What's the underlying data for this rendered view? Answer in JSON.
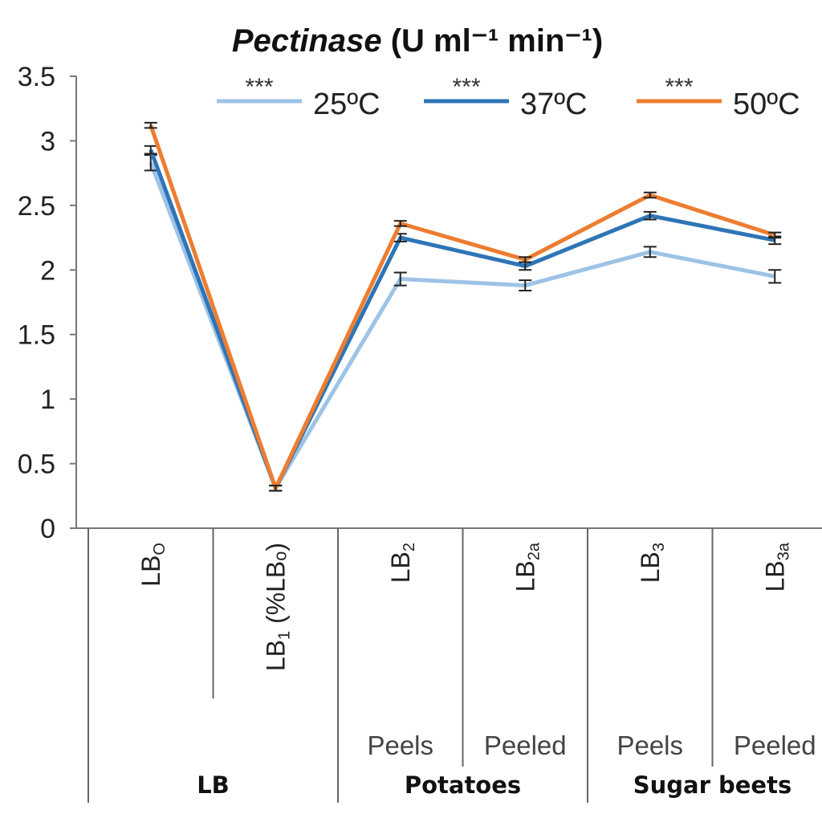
{
  "chart_data": {
    "type": "line",
    "title_italic": "Pectinase",
    "title_rest": " (U ml⁻¹ min⁻¹)",
    "ylim": [
      0,
      3.5
    ],
    "yticks": [
      "0",
      "0.5",
      "1",
      "1.5",
      "2",
      "2.5",
      "3",
      "3.5"
    ],
    "categories": [
      {
        "base": "LB",
        "sub": "O",
        "tail": ""
      },
      {
        "base": "LB",
        "sub": "1",
        "tail": " (%LBₒ)"
      },
      {
        "base": "LB",
        "sub": "2",
        "tail": ""
      },
      {
        "base": "LB",
        "sub": "2a",
        "tail": ""
      },
      {
        "base": "LB",
        "sub": "3",
        "tail": ""
      },
      {
        "base": "LB",
        "sub": "3a",
        "tail": ""
      }
    ],
    "sub_labels": [
      "",
      "",
      "Peels",
      "Peeled",
      "Peels",
      "Peeled"
    ],
    "groups": [
      {
        "label": "LB",
        "from": 0,
        "to": 1
      },
      {
        "label": "Potatoes",
        "from": 2,
        "to": 3
      },
      {
        "label": "Sugar beets",
        "from": 4,
        "to": 5
      }
    ],
    "series": [
      {
        "name": "25ºC",
        "stars": "***",
        "color": "#9DC3E6",
        "values": [
          2.83,
          0.31,
          1.93,
          1.88,
          2.14,
          1.95
        ],
        "err": [
          0.06,
          0.02,
          0.05,
          0.04,
          0.04,
          0.05
        ]
      },
      {
        "name": "37ºC",
        "stars": "***",
        "color": "#2E75B6",
        "values": [
          2.93,
          0.31,
          2.25,
          2.03,
          2.42,
          2.23
        ],
        "err": [
          0.03,
          0.02,
          0.03,
          0.03,
          0.03,
          0.03
        ]
      },
      {
        "name": "50ºC",
        "stars": "***",
        "color": "#ED7D31",
        "values": [
          3.12,
          0.31,
          2.36,
          2.08,
          2.58,
          2.27
        ],
        "err": [
          0.02,
          0.02,
          0.02,
          0.02,
          0.02,
          0.02
        ]
      }
    ],
    "legend_position": "top-right",
    "grid": false
  }
}
